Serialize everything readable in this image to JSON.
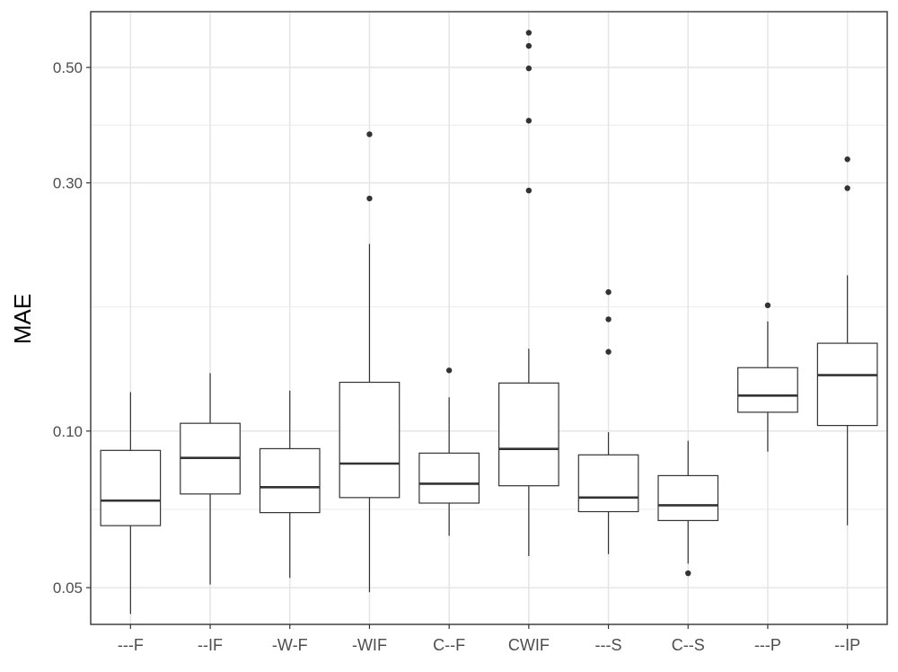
{
  "chart_data": {
    "type": "box",
    "ylabel": "MAE",
    "xlabel": "",
    "y_scale": "log10",
    "ylim": [
      0.0425,
      0.64
    ],
    "grid": true,
    "yticks": [
      0.05,
      0.1,
      0.3,
      0.5
    ],
    "ytick_labels": [
      "0.05",
      "0.10",
      "0.30",
      "0.50"
    ],
    "categories": [
      "---F",
      "--IF",
      "-W-F",
      "-WIF",
      "C--F",
      "CWIF",
      "---S",
      "C--S",
      "---P",
      "--IP"
    ],
    "boxes": [
      {
        "whisker_low": 0.0445,
        "q1": 0.0658,
        "median": 0.0735,
        "q3": 0.0918,
        "whisker_high": 0.1188,
        "outliers": []
      },
      {
        "whisker_low": 0.0507,
        "q1": 0.0757,
        "median": 0.0888,
        "q3": 0.1035,
        "whisker_high": 0.1292,
        "outliers": []
      },
      {
        "whisker_low": 0.0522,
        "q1": 0.0697,
        "median": 0.078,
        "q3": 0.0925,
        "whisker_high": 0.1196,
        "outliers": []
      },
      {
        "whisker_low": 0.049,
        "q1": 0.0745,
        "median": 0.0866,
        "q3": 0.1241,
        "whisker_high": 0.229,
        "outliers": [
          0.28,
          0.372
        ]
      },
      {
        "whisker_low": 0.0629,
        "q1": 0.0727,
        "median": 0.0792,
        "q3": 0.0907,
        "whisker_high": 0.1161,
        "outliers": [
          0.1308
        ]
      },
      {
        "whisker_low": 0.0575,
        "q1": 0.0785,
        "median": 0.0924,
        "q3": 0.1237,
        "whisker_high": 0.144,
        "outliers": [
          0.29,
          0.395,
          0.498,
          0.55,
          0.583
        ]
      },
      {
        "whisker_low": 0.058,
        "q1": 0.07,
        "median": 0.0745,
        "q3": 0.09,
        "whisker_high": 0.0995,
        "outliers": [
          0.142,
          0.164,
          0.185
        ]
      },
      {
        "whisker_low": 0.0556,
        "q1": 0.0673,
        "median": 0.072,
        "q3": 0.0821,
        "whisker_high": 0.0958,
        "outliers": [
          0.0533
        ]
      },
      {
        "whisker_low": 0.0913,
        "q1": 0.1087,
        "median": 0.117,
        "q3": 0.1324,
        "whisker_high": 0.1625,
        "outliers": [
          0.1745
        ]
      },
      {
        "whisker_low": 0.0659,
        "q1": 0.1025,
        "median": 0.1281,
        "q3": 0.1475,
        "whisker_high": 0.1993,
        "outliers": [
          0.293,
          0.333
        ]
      }
    ]
  }
}
